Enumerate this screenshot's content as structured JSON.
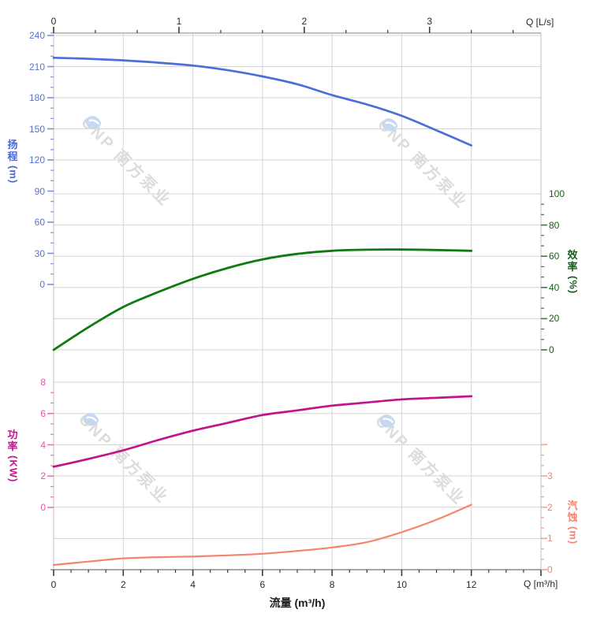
{
  "page": {
    "background": "#ffffff"
  },
  "watermark": {
    "text": "CNP 南方泵业",
    "text_color": "#dcdcdc",
    "logo_color": "#c7d9f1"
  },
  "corner_labels": {
    "top_right": "Q [L/s]",
    "bottom_right": "Q [m³/h]"
  },
  "bottom_title": "流量 (m³/h)",
  "axis_titles": {
    "head": {
      "cn": "扬程",
      "unit": "(m)",
      "color": "#4a68d5"
    },
    "efficiency": {
      "cn": "效率",
      "unit": "(%)",
      "color": "#14601a"
    },
    "power": {
      "cn": "功率",
      "unit": "(KW)",
      "color": "#c2188c"
    },
    "npsh": {
      "cn": "汽蚀",
      "unit": "(m)",
      "color": "#f4846d"
    }
  },
  "chart_data": {
    "type": "line",
    "title": "Pump performance curves (CNP)",
    "x_axis_bottom": {
      "label": "流量 (m³/h)",
      "unit_label": "Q [m³/h]",
      "min": 0,
      "max": 14,
      "major_step": 2,
      "minor_step": 0.5,
      "tick_values": [
        0,
        2,
        4,
        6,
        8,
        10,
        12
      ],
      "label_color": "#2a2a2a",
      "tick_color": "#3c3c3c"
    },
    "x_axis_top": {
      "unit_label": "Q [L/s]",
      "min": 0,
      "max": 3.8889,
      "major_step": 1,
      "minor_step": 0.33333,
      "tick_values": [
        0,
        1,
        2,
        3
      ],
      "label_color": "#2a2a2a",
      "tick_color": "#3c3c3c"
    },
    "y_axes": {
      "head": {
        "label": "扬程 (m)",
        "min": 0,
        "max": 240,
        "major_step": 30,
        "minor_step": 10,
        "tick_values": [
          240,
          210,
          180,
          150,
          120,
          90,
          60,
          30,
          0
        ],
        "side": "left",
        "label_color": "#5573d8",
        "tick_color": "#7b90de"
      },
      "efficiency": {
        "label": "效率 (%)",
        "min": 0,
        "max": 100,
        "major_step": 20,
        "minor_step": 6.6667,
        "tick_values": [
          100,
          80,
          60,
          40,
          20,
          0
        ],
        "side": "right",
        "label_color": "#176317",
        "tick_color": "#3d7a42"
      },
      "power": {
        "label": "功率 (KW)",
        "min": 0,
        "max": 8,
        "major_step": 2,
        "minor_step": 0.6667,
        "tick_values": [
          8,
          6,
          4,
          2,
          0
        ],
        "side": "left",
        "label_color": "#dd5aa4",
        "tick_color": "#e473b4"
      },
      "npsh": {
        "label": "汽蚀 (m)",
        "min": 0,
        "max": 4,
        "major_step": 1,
        "minor_step": 0.3333,
        "tick_values": [
          3,
          2,
          1,
          0
        ],
        "side": "right",
        "label_color": "#f republic4846d",
        "tick_color": "#f5a08c"
      }
    },
    "series": [
      {
        "name": "head",
        "axis": "head",
        "color": "#4a6fd8",
        "width": 2.7,
        "x": [
          0,
          1,
          2,
          3,
          4,
          5,
          6,
          7,
          8,
          9,
          10,
          11,
          12
        ],
        "y": [
          218.5,
          217.5,
          216,
          213.8,
          211,
          206.5,
          200.5,
          193,
          182.5,
          173.5,
          162.5,
          148.5,
          134
        ]
      },
      {
        "name": "efficiency",
        "axis": "efficiency",
        "color": "#0f7a10",
        "width": 2.8,
        "x": [
          0,
          1,
          2,
          3,
          4,
          5,
          6,
          7,
          8,
          9,
          10,
          11,
          12
        ],
        "y": [
          0,
          14.5,
          27.5,
          37,
          45.5,
          52.5,
          58,
          61.5,
          63.5,
          64.2,
          64.3,
          64,
          63.5
        ]
      },
      {
        "name": "power",
        "axis": "power",
        "color": "#c3138b",
        "width": 2.7,
        "x": [
          0,
          1,
          2,
          3,
          4,
          5,
          6,
          7,
          8,
          9,
          10,
          11,
          12
        ],
        "y": [
          2.6,
          3.1,
          3.65,
          4.3,
          4.9,
          5.4,
          5.9,
          6.2,
          6.5,
          6.7,
          6.9,
          7.0,
          7.1
        ]
      },
      {
        "name": "npsh",
        "axis": "npsh",
        "color": "#f5846c",
        "width": 2.2,
        "x": [
          0,
          1,
          2,
          3,
          4,
          5,
          6,
          7,
          8,
          9,
          10,
          11,
          12
        ],
        "y": [
          0.15,
          0.26,
          0.36,
          0.4,
          0.42,
          0.46,
          0.51,
          0.6,
          0.71,
          0.88,
          1.2,
          1.6,
          2.08
        ]
      }
    ],
    "grid": true,
    "legend": "none"
  }
}
